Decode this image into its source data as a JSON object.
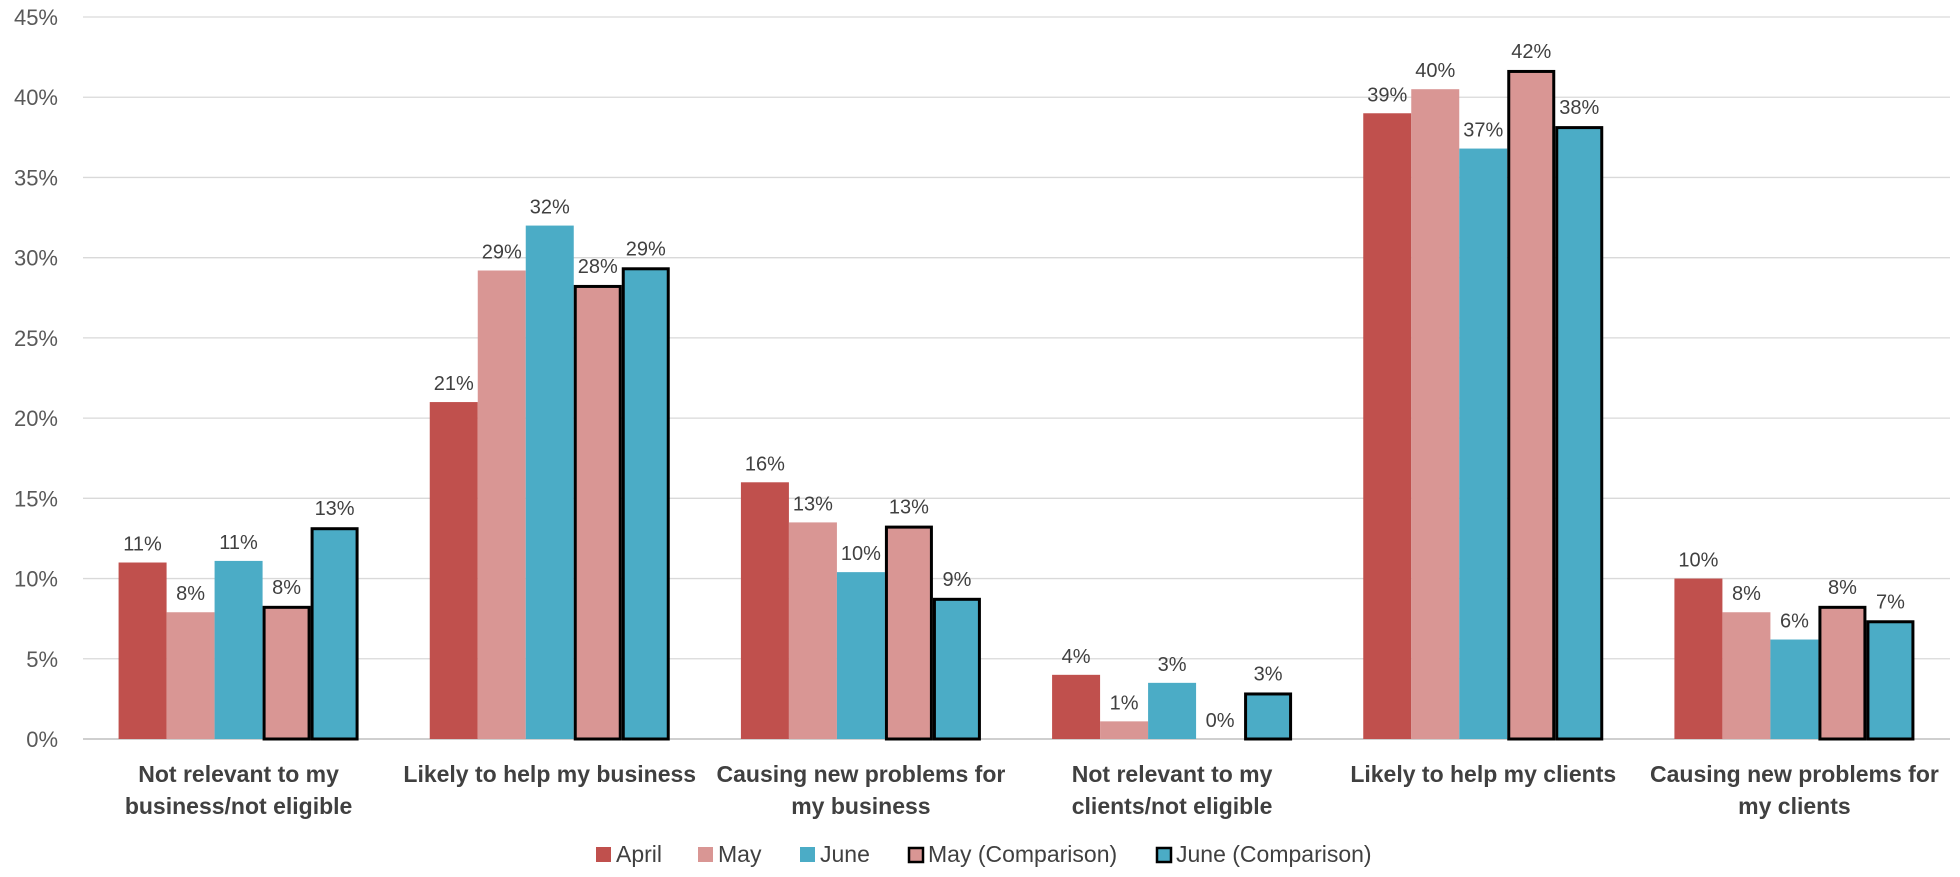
{
  "chart_data": {
    "type": "bar",
    "title": "",
    "xlabel": "",
    "ylabel": "",
    "ylim": [
      0,
      45
    ],
    "y_ticks": [
      {
        "value": 0,
        "label": "0%"
      },
      {
        "value": 5,
        "label": "5%"
      },
      {
        "value": 10,
        "label": "10%"
      },
      {
        "value": 15,
        "label": "15%"
      },
      {
        "value": 20,
        "label": "20%"
      },
      {
        "value": 25,
        "label": "25%"
      },
      {
        "value": 30,
        "label": "30%"
      },
      {
        "value": 35,
        "label": "35%"
      },
      {
        "value": 40,
        "label": "40%"
      },
      {
        "value": 45,
        "label": "45%"
      }
    ],
    "grid": true,
    "legend_position": "bottom",
    "categories": [
      {
        "lines": [
          "Not relevant to my",
          "business/not eligible"
        ]
      },
      {
        "lines": [
          "Likely to help my business"
        ]
      },
      {
        "lines": [
          "Causing new problems for",
          "my business"
        ]
      },
      {
        "lines": [
          "Not relevant to my",
          "clients/not eligible"
        ]
      },
      {
        "lines": [
          "Likely to help my clients"
        ]
      },
      {
        "lines": [
          "Causing new problems for",
          "my clients"
        ]
      }
    ],
    "series": [
      {
        "name": "April",
        "color": "#c0504d",
        "outlined": false,
        "values": [
          11,
          21,
          16,
          4,
          39,
          10
        ],
        "labels": [
          "11%",
          "21%",
          "16%",
          "4%",
          "39%",
          "10%"
        ]
      },
      {
        "name": "May",
        "color": "#d99694",
        "outlined": false,
        "values": [
          7.9,
          29.2,
          13.5,
          1.1,
          40.5,
          7.9
        ],
        "labels": [
          "8%",
          "29%",
          "13%",
          "1%",
          "40%",
          "8%"
        ]
      },
      {
        "name": "June",
        "color": "#4bacc6",
        "outlined": false,
        "values": [
          11.1,
          32,
          10.4,
          3.5,
          36.8,
          6.2
        ],
        "labels": [
          "11%",
          "32%",
          "10%",
          "3%",
          "37%",
          "6%"
        ]
      },
      {
        "name": "May (Comparison)",
        "color": "#d99694",
        "outlined": true,
        "values": [
          8.3,
          28.3,
          13.3,
          0,
          41.7,
          8.3
        ],
        "labels": [
          "8%",
          "28%",
          "13%",
          "0%",
          "42%",
          "8%"
        ]
      },
      {
        "name": "June (Comparison)",
        "color": "#4bacc6",
        "outlined": true,
        "values": [
          13.2,
          29.4,
          8.8,
          2.9,
          38.2,
          7.4
        ],
        "labels": [
          "13%",
          "29%",
          "9%",
          "3%",
          "38%",
          "7%"
        ]
      }
    ]
  }
}
